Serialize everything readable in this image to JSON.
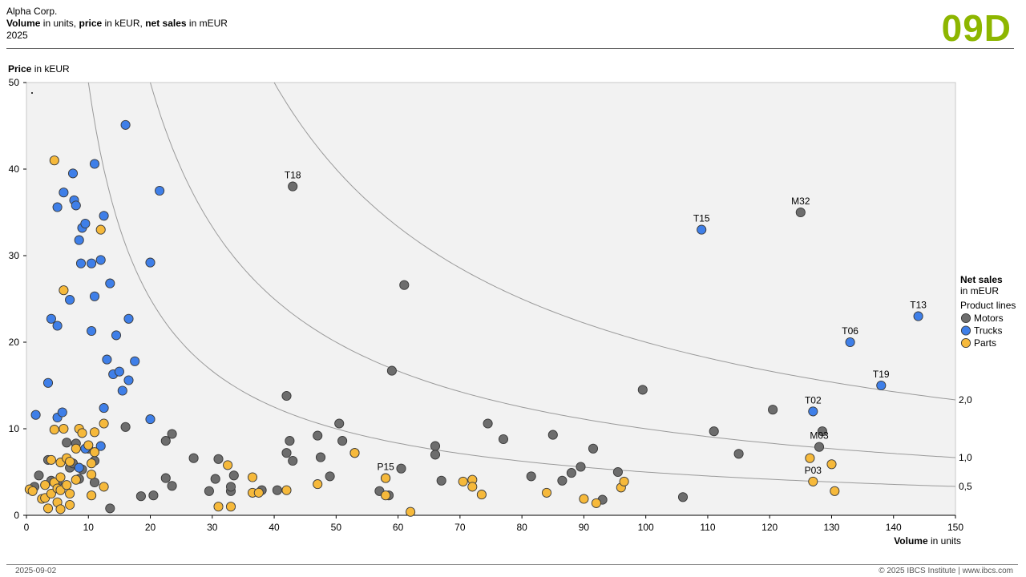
{
  "header": {
    "company": "Alpha Corp.",
    "measure_1_bold": "Volume",
    "measure_1_rest": " in units, ",
    "measure_2_bold": "price",
    "measure_2_rest": " in kEUR, ",
    "measure_3_bold": "net sales",
    "measure_3_rest": " in mEUR",
    "period": "2025",
    "badge": "09D"
  },
  "footer": {
    "date": "2025-09-02",
    "copyright": "© 2025 IBCS Institute | www.ibcs.com"
  },
  "chart_data": {
    "type": "scatter",
    "y_title_bold": "Price",
    "y_title_rest": " in kEUR",
    "x_title_bold": "Volume",
    "x_title_rest": " in units",
    "xlim": [
      0,
      150
    ],
    "ylim": [
      0,
      50
    ],
    "x_ticks": [
      0,
      10,
      20,
      30,
      40,
      50,
      60,
      70,
      80,
      90,
      100,
      110,
      120,
      130,
      140,
      150
    ],
    "y_ticks": [
      0,
      10,
      20,
      30,
      40,
      50
    ],
    "grid": false,
    "plot_background": "#f2f2f2",
    "iso_sales_curves": [
      {
        "value": 0.5,
        "label": "0,5"
      },
      {
        "value": 1.0,
        "label": "1,0"
      },
      {
        "value": 2.0,
        "label": "2,0"
      }
    ],
    "legend": {
      "title_bold": "Net sales",
      "title_rest": "in mEUR",
      "subtitle": "Product lines",
      "placement": "right"
    },
    "series": [
      {
        "name": "Motors",
        "color": "#6d6d6d",
        "points": [
          [
            1.3,
            3.3
          ],
          [
            2,
            4.6
          ],
          [
            3.5,
            6.4
          ],
          [
            4,
            4
          ],
          [
            5,
            3.8
          ],
          [
            6.5,
            8.4
          ],
          [
            7,
            5.5
          ],
          [
            7.5,
            6
          ],
          [
            8,
            8.3
          ],
          [
            8.5,
            4.2
          ],
          [
            9,
            5.3
          ],
          [
            10,
            7.7
          ],
          [
            11,
            3.8
          ],
          [
            11,
            6.3
          ],
          [
            13.5,
            0.8
          ],
          [
            16,
            10.2
          ],
          [
            18.5,
            2.2
          ],
          [
            20.5,
            2.3
          ],
          [
            22.5,
            4.3
          ],
          [
            22.5,
            8.6
          ],
          [
            23.5,
            9.4
          ],
          [
            23.5,
            3.4
          ],
          [
            27,
            6.6
          ],
          [
            29.5,
            2.8
          ],
          [
            30.5,
            4.2
          ],
          [
            31,
            6.5
          ],
          [
            33,
            2.8
          ],
          [
            33,
            3.3
          ],
          [
            33.5,
            4.6
          ],
          [
            38,
            2.9
          ],
          [
            40.5,
            2.9
          ],
          [
            42,
            13.8
          ],
          [
            42,
            7.2
          ],
          [
            42.5,
            8.6
          ],
          [
            43,
            6.3
          ],
          [
            47,
            9.2
          ],
          [
            47.5,
            6.7
          ],
          [
            49,
            4.5
          ],
          [
            50.5,
            10.6
          ],
          [
            51,
            8.6
          ],
          [
            53,
            7.2
          ],
          [
            57,
            2.8
          ],
          [
            58.5,
            2.3
          ],
          [
            60.5,
            5.4
          ],
          [
            61,
            26.6
          ],
          [
            59,
            16.7
          ],
          [
            66,
            8
          ],
          [
            66,
            7
          ],
          [
            67,
            4
          ],
          [
            74.5,
            10.6
          ],
          [
            77,
            8.8
          ],
          [
            81.5,
            4.5
          ],
          [
            85,
            9.3
          ],
          [
            86.5,
            4
          ],
          [
            88,
            4.9
          ],
          [
            89.5,
            5.6
          ],
          [
            91.5,
            7.7
          ],
          [
            93,
            1.8
          ],
          [
            95.5,
            5
          ],
          [
            99.5,
            14.5
          ],
          [
            106,
            2.1
          ],
          [
            111,
            9.7
          ],
          [
            115,
            7.1
          ],
          [
            120.5,
            12.2
          ],
          [
            43,
            38,
            "T18"
          ],
          [
            125,
            35,
            "M32"
          ],
          [
            128.5,
            9.7
          ],
          [
            128,
            7.9,
            "M03"
          ]
        ]
      },
      {
        "name": "Trucks",
        "color": "#3f7fe8",
        "points": [
          [
            1.5,
            11.6
          ],
          [
            3.5,
            15.3
          ],
          [
            4,
            22.7
          ],
          [
            5,
            21.9
          ],
          [
            5,
            11.3
          ],
          [
            5,
            35.6
          ],
          [
            5.8,
            11.9
          ],
          [
            6,
            37.3
          ],
          [
            7,
            24.9
          ],
          [
            7.5,
            39.5
          ],
          [
            7.7,
            36.4
          ],
          [
            8,
            35.8
          ],
          [
            8.5,
            31.8
          ],
          [
            8.5,
            5.5
          ],
          [
            8.8,
            29.1
          ],
          [
            9,
            33.2
          ],
          [
            9.5,
            33.7
          ],
          [
            10.5,
            21.3
          ],
          [
            10.5,
            29.1
          ],
          [
            11,
            25.3
          ],
          [
            11,
            40.6
          ],
          [
            12,
            29.5
          ],
          [
            12,
            8
          ],
          [
            12.5,
            12.4
          ],
          [
            12.5,
            34.6
          ],
          [
            13,
            18
          ],
          [
            13.5,
            26.8
          ],
          [
            14,
            16.3
          ],
          [
            14.5,
            20.8
          ],
          [
            15,
            16.6
          ],
          [
            15.5,
            14.4
          ],
          [
            16,
            45.1
          ],
          [
            16.5,
            22.7
          ],
          [
            16.5,
            15.6
          ],
          [
            17.5,
            17.8
          ],
          [
            20,
            29.2
          ],
          [
            20,
            11.1
          ],
          [
            21.5,
            37.5
          ],
          [
            9.5,
            7.7
          ],
          [
            109,
            33,
            "T15"
          ],
          [
            133,
            20,
            "T06"
          ],
          [
            144,
            23,
            "T13"
          ],
          [
            138,
            15,
            "T19"
          ],
          [
            127,
            12,
            "T02"
          ]
        ]
      },
      {
        "name": "Parts",
        "color": "#f6b93b",
        "points": [
          [
            0.5,
            3
          ],
          [
            1,
            2.8
          ],
          [
            2.5,
            1.9
          ],
          [
            3,
            3.5
          ],
          [
            3,
            2
          ],
          [
            3.5,
            0.8
          ],
          [
            4,
            6.4
          ],
          [
            4,
            2.5
          ],
          [
            4.5,
            3.8
          ],
          [
            4.5,
            9.9
          ],
          [
            4.5,
            41
          ],
          [
            5,
            1.5
          ],
          [
            5,
            3.1
          ],
          [
            5.5,
            4.4
          ],
          [
            5.5,
            2.9
          ],
          [
            5.5,
            6.1
          ],
          [
            5.5,
            0.7
          ],
          [
            6,
            26
          ],
          [
            6,
            10
          ],
          [
            6.5,
            6.6
          ],
          [
            6.5,
            3.5
          ],
          [
            7,
            2.5
          ],
          [
            7,
            1.2
          ],
          [
            7,
            6.2
          ],
          [
            8,
            7.7
          ],
          [
            8,
            4.1
          ],
          [
            8.5,
            10
          ],
          [
            9,
            9.5
          ],
          [
            10,
            8.1
          ],
          [
            10.5,
            2.3
          ],
          [
            10.5,
            4.7
          ],
          [
            10.5,
            6
          ],
          [
            11,
            7.3
          ],
          [
            11,
            9.6
          ],
          [
            12,
            33
          ],
          [
            12.5,
            10.6
          ],
          [
            12.5,
            3.3
          ],
          [
            31,
            1
          ],
          [
            32.5,
            5.8
          ],
          [
            33,
            1
          ],
          [
            36.5,
            4.4
          ],
          [
            36.5,
            2.6
          ],
          [
            37.5,
            2.6
          ],
          [
            42,
            2.9
          ],
          [
            47,
            3.6
          ],
          [
            53,
            7.2
          ],
          [
            58,
            2.3
          ],
          [
            58,
            4.3
          ],
          [
            62,
            0.4
          ],
          [
            70.5,
            3.9
          ],
          [
            72,
            4.1
          ],
          [
            72,
            3.3
          ],
          [
            73.5,
            2.4
          ],
          [
            84,
            2.6
          ],
          [
            90,
            1.9
          ],
          [
            92,
            1.4
          ],
          [
            96,
            3.2
          ],
          [
            96.5,
            3.9
          ],
          [
            126.5,
            6.6
          ],
          [
            130,
            5.9
          ],
          [
            130.5,
            2.8
          ],
          [
            58,
            4.3,
            "P15"
          ],
          [
            127,
            3.9,
            "P03"
          ]
        ]
      }
    ]
  }
}
